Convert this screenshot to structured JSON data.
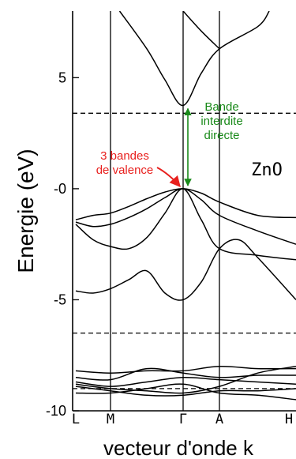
{
  "chart_data": {
    "type": "line",
    "title": "",
    "material_label": "ZnO",
    "ylabel": "Energie (eV)",
    "xlabel": "vecteur d'onde k",
    "ylim": [
      -10,
      8
    ],
    "yticks": [
      {
        "value": 5,
        "label": "5"
      },
      {
        "value": 0,
        "label": "-0"
      },
      {
        "value": -5,
        "label": "-5"
      },
      {
        "value": -10,
        "label": "-10"
      }
    ],
    "kpoints": [
      {
        "label": "L",
        "x": 0
      },
      {
        "label": "M",
        "x": 1
      },
      {
        "label": "Γ",
        "x": 3
      },
      {
        "label": "A",
        "x": 4
      },
      {
        "label": "H",
        "x": 6
      }
    ],
    "kpoint_lines": [
      1,
      3,
      4
    ],
    "dashed_levels": [
      3.4,
      -6.5,
      -9.0
    ],
    "band_gap": {
      "from": 0,
      "to": 3.75,
      "at_k": 3
    },
    "series": [
      {
        "points": [
          [
            1.25,
            8
          ],
          [
            2,
            6.3
          ],
          [
            2.5,
            4.9
          ],
          [
            3,
            3.75
          ],
          [
            3.5,
            5.2
          ],
          [
            4,
            6.3
          ],
          [
            5,
            7.3
          ],
          [
            5.3,
            8
          ]
        ]
      },
      {
        "points": [
          [
            3,
            8
          ],
          [
            3.5,
            7.1
          ],
          [
            4,
            6.3
          ]
        ]
      },
      {
        "points": [
          [
            0,
            -1.4
          ],
          [
            0.5,
            -1.2
          ],
          [
            1,
            -1.1
          ],
          [
            1.5,
            -0.8
          ],
          [
            2,
            -0.45
          ],
          [
            2.5,
            -0.15
          ],
          [
            3,
            0
          ],
          [
            3.5,
            -0.2
          ],
          [
            4,
            -0.6
          ],
          [
            5,
            -1.2
          ],
          [
            6,
            -1.3
          ]
        ]
      },
      {
        "points": [
          [
            0,
            -1.5
          ],
          [
            0.5,
            -1.7
          ],
          [
            1,
            -1.6
          ],
          [
            1.5,
            -1.3
          ],
          [
            2,
            -0.9
          ],
          [
            2.5,
            -0.4
          ],
          [
            3,
            0
          ],
          [
            3.5,
            -0.5
          ],
          [
            4,
            -1.2
          ],
          [
            5,
            -1.9
          ],
          [
            6,
            -2.5
          ]
        ]
      },
      {
        "points": [
          [
            0,
            -1.6
          ],
          [
            0.5,
            -2.3
          ],
          [
            1,
            -2.6
          ],
          [
            1.5,
            -2.7
          ],
          [
            2,
            -2.2
          ],
          [
            2.5,
            -1.1
          ],
          [
            3,
            0
          ],
          [
            3.5,
            -1.4
          ],
          [
            4,
            -2.7
          ],
          [
            5,
            -3.0
          ],
          [
            6,
            -3.2
          ]
        ]
      },
      {
        "points": [
          [
            0,
            -4.6
          ],
          [
            0.5,
            -4.7
          ],
          [
            1,
            -4.5
          ],
          [
            1.5,
            -4.1
          ],
          [
            2,
            -3.7
          ],
          [
            2.5,
            -4.7
          ],
          [
            3,
            -5.0
          ],
          [
            3.5,
            -4.2
          ],
          [
            4,
            -2.7
          ],
          [
            4.5,
            -2.3
          ],
          [
            5,
            -3.1
          ],
          [
            6,
            -5.0
          ]
        ]
      },
      {
        "points": [
          [
            0,
            -8.2
          ],
          [
            1,
            -8.3
          ],
          [
            2,
            -8.2
          ],
          [
            3,
            -8.2
          ],
          [
            4,
            -8.0
          ],
          [
            5,
            -8.1
          ],
          [
            6,
            -8.1
          ]
        ]
      },
      {
        "points": [
          [
            0,
            -8.5
          ],
          [
            1,
            -8.6
          ],
          [
            2,
            -8.1
          ],
          [
            3,
            -8.3
          ],
          [
            4,
            -8.5
          ],
          [
            5,
            -8.4
          ],
          [
            6,
            -8.4
          ]
        ]
      },
      {
        "points": [
          [
            0,
            -8.7
          ],
          [
            1,
            -8.9
          ],
          [
            2,
            -8.7
          ],
          [
            3,
            -8.5
          ],
          [
            4,
            -8.6
          ],
          [
            5,
            -8.7
          ],
          [
            6,
            -8.8
          ]
        ]
      },
      {
        "points": [
          [
            0,
            -8.8
          ],
          [
            1,
            -9.0
          ],
          [
            2,
            -9.1
          ],
          [
            3,
            -9.2
          ],
          [
            4,
            -8.9
          ],
          [
            5,
            -8.3
          ],
          [
            6,
            -8.0
          ]
        ]
      },
      {
        "points": [
          [
            0,
            -8.9
          ],
          [
            1,
            -9.1
          ],
          [
            2,
            -9.3
          ],
          [
            3,
            -9.3
          ],
          [
            4,
            -9.1
          ],
          [
            5,
            -9.1
          ],
          [
            6,
            -9.0
          ]
        ]
      },
      {
        "points": [
          [
            0,
            -9.2
          ],
          [
            1,
            -9.2
          ],
          [
            2,
            -9.0
          ],
          [
            3,
            -8.8
          ],
          [
            4,
            -9.2
          ],
          [
            5,
            -9.3
          ],
          [
            6,
            -9.5
          ]
        ]
      }
    ],
    "annotations": [
      {
        "lines": [
          "Bande",
          "interdite",
          "directe"
        ],
        "color": "#1a8a1a"
      },
      {
        "lines": [
          "3 bandes",
          "de valence"
        ],
        "color": "#e8201e"
      }
    ]
  }
}
